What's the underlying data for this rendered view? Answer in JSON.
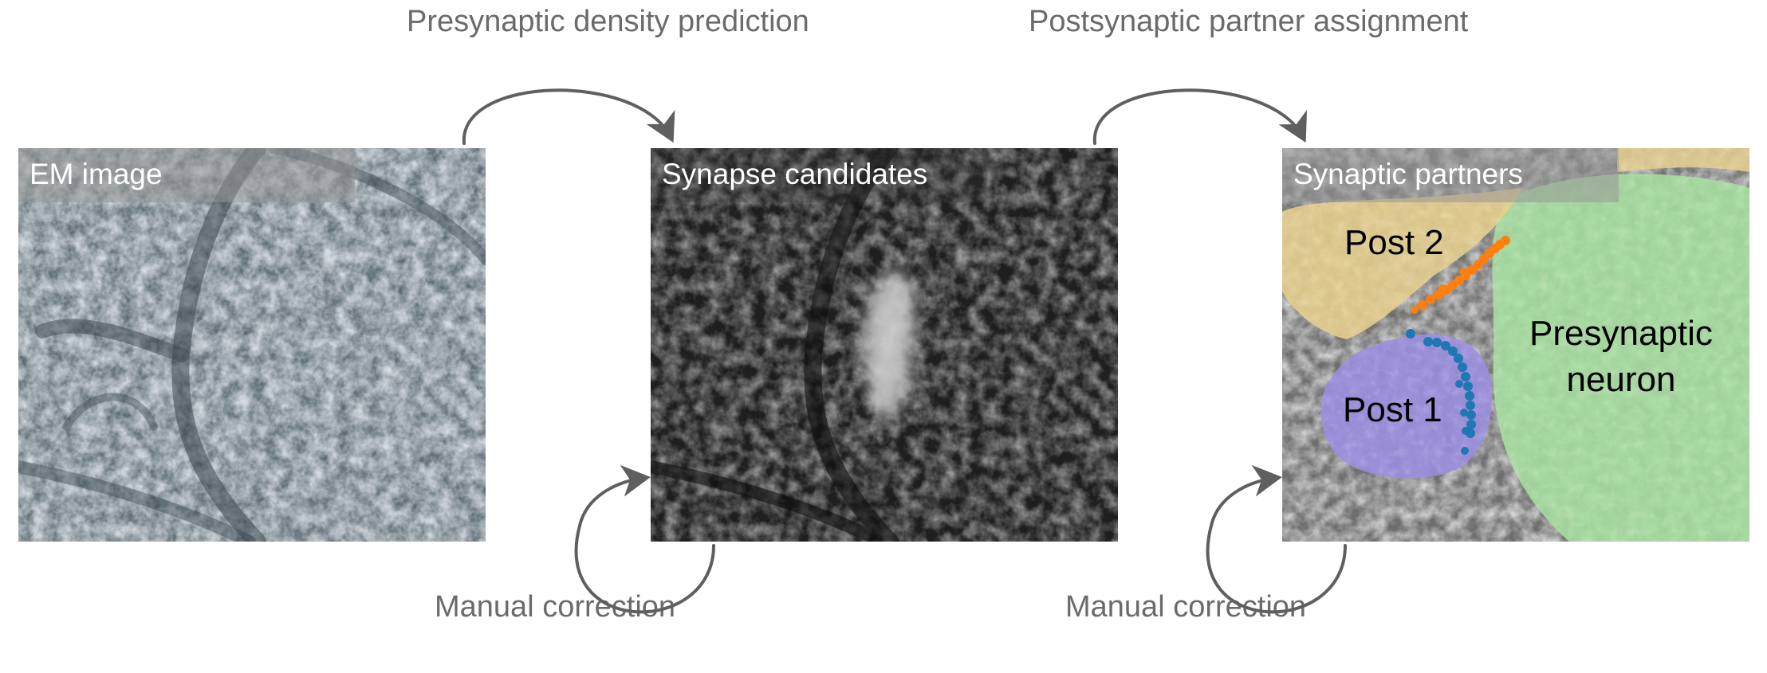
{
  "panels": {
    "em": {
      "title": "EM image"
    },
    "candidates": {
      "title": "Synapse candidates"
    },
    "partners": {
      "title": "Synaptic partners",
      "post2": "Post 2",
      "post1": "Post 1",
      "presynaptic": "Presynaptic neuron"
    }
  },
  "steps": {
    "presynaptic_density": "Presynaptic density prediction",
    "postsynaptic_assignment": "Postsynaptic partner assignment",
    "manual_correction_1": "Manual correction",
    "manual_correction_2": "Manual correction"
  },
  "colors": {
    "arrow": "#5f5f5f",
    "post1_region": "#9b8ee0",
    "post2_region": "#e6cf8e",
    "presynaptic_region": "#a9dfa1",
    "post1_dots": "#1f77b4",
    "post2_dots": "#ff7f0e"
  }
}
